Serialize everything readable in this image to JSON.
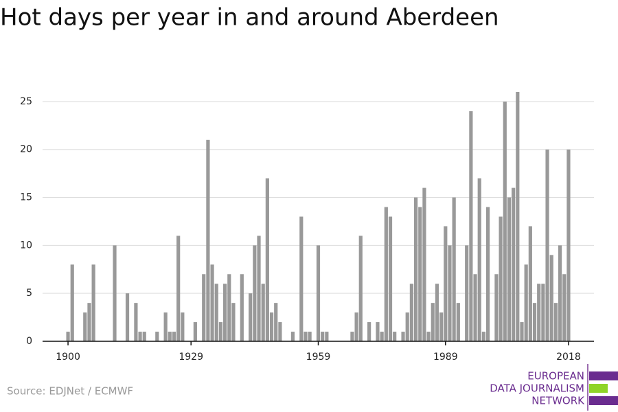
{
  "chart_data": {
    "type": "bar",
    "title": "Hot days per year in and around Aberdeen",
    "source": "Source: EDJNet / ECMWF",
    "logo": [
      "EUROPEAN",
      "DATA JOURNALISM",
      "NETWORK"
    ],
    "color": "#999999",
    "grid": true,
    "x": [
      1900,
      1901,
      1902,
      1903,
      1904,
      1905,
      1906,
      1907,
      1908,
      1909,
      1910,
      1911,
      1912,
      1913,
      1914,
      1915,
      1916,
      1917,
      1918,
      1919,
      1920,
      1921,
      1922,
      1923,
      1924,
      1925,
      1926,
      1927,
      1928,
      1929,
      1930,
      1931,
      1932,
      1933,
      1934,
      1935,
      1936,
      1937,
      1938,
      1939,
      1940,
      1941,
      1942,
      1943,
      1944,
      1945,
      1946,
      1947,
      1948,
      1949,
      1950,
      1951,
      1952,
      1953,
      1954,
      1955,
      1956,
      1957,
      1958,
      1959,
      1960,
      1961,
      1962,
      1963,
      1964,
      1965,
      1966,
      1967,
      1968,
      1969,
      1970,
      1971,
      1972,
      1973,
      1974,
      1975,
      1976,
      1977,
      1978,
      1979,
      1980,
      1981,
      1982,
      1983,
      1984,
      1985,
      1986,
      1987,
      1988,
      1989,
      1990,
      1991,
      1992,
      1993,
      1994,
      1995,
      1996,
      1997,
      1998,
      1999,
      2000,
      2001,
      2002,
      2003,
      2004,
      2005,
      2006,
      2007,
      2008,
      2009,
      2010,
      2011,
      2012,
      2013,
      2014,
      2015,
      2016,
      2017,
      2018
    ],
    "values": [
      1,
      8,
      0,
      0,
      3,
      4,
      8,
      0,
      0,
      0,
      0,
      10,
      0,
      0,
      5,
      0,
      4,
      1,
      1,
      0,
      0,
      1,
      0,
      3,
      1,
      1,
      11,
      3,
      0,
      0,
      2,
      0,
      7,
      21,
      8,
      6,
      2,
      6,
      7,
      4,
      0,
      7,
      0,
      5,
      10,
      11,
      6,
      17,
      3,
      4,
      2,
      0,
      0,
      1,
      0,
      13,
      1,
      1,
      0,
      10,
      1,
      1,
      0,
      0,
      0,
      0,
      0,
      1,
      3,
      11,
      0,
      2,
      0,
      2,
      1,
      14,
      13,
      1,
      0,
      1,
      3,
      6,
      15,
      14,
      16,
      1,
      4,
      6,
      3,
      12,
      10,
      15,
      4,
      0,
      10,
      24,
      7,
      17,
      1,
      14,
      0,
      7,
      13,
      25,
      15,
      16,
      26,
      2,
      8,
      12,
      4,
      6,
      6,
      20,
      9,
      4,
      10,
      7,
      20
    ],
    "xlim": [
      1894,
      2024
    ],
    "xticks": [
      1900,
      1929,
      1959,
      1989,
      2018
    ],
    "ylim": [
      0,
      27
    ],
    "yticks": [
      0,
      5,
      10,
      15,
      20,
      25
    ]
  }
}
